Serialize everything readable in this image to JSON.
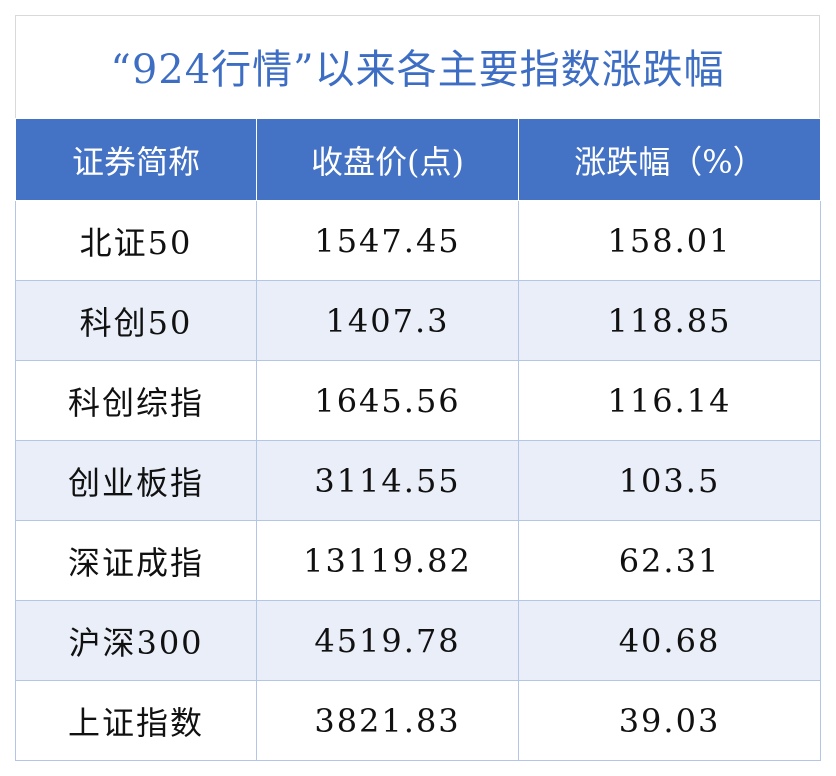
{
  "header": {
    "title": "“924行情”以来各主要指数涨跌幅"
  },
  "table": {
    "columns": [
      "证券简称",
      "收盘价(点)",
      "涨跌幅（%）"
    ],
    "rows": [
      [
        "北证50",
        "1547.45",
        "158.01"
      ],
      [
        "科创50",
        "1407.3",
        "118.85"
      ],
      [
        "科创综指",
        "1645.56",
        "116.14"
      ],
      [
        "创业板指",
        "3114.55",
        "103.5"
      ],
      [
        "深证成指",
        "13119.82",
        "62.31"
      ],
      [
        "沪深300",
        "4519.78",
        "40.68"
      ],
      [
        "上证指数",
        "3821.83",
        "39.03"
      ]
    ]
  }
}
